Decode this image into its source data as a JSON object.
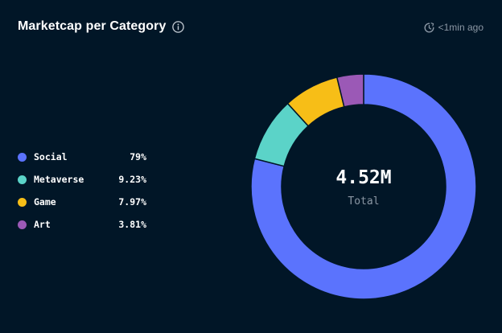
{
  "header": {
    "title": "Marketcap per Category",
    "info_icon": "info-icon",
    "updated_icon": "clock-icon",
    "updated_text": "<1min ago"
  },
  "center": {
    "value": "4.52M",
    "label": "Total"
  },
  "chart_data": {
    "type": "pie",
    "variant": "donut",
    "title": "Marketcap per Category",
    "total_label": "4.52M",
    "legend_position": "left",
    "categories": [
      "Social",
      "Metaverse",
      "Game",
      "Art"
    ],
    "values": [
      79,
      9.23,
      7.97,
      3.81
    ],
    "value_labels": [
      "79%",
      "9.23%",
      "7.97%",
      "3.81%"
    ],
    "colors": [
      "#5b73fd",
      "#5bd3c8",
      "#f7be17",
      "#9b59b6"
    ]
  },
  "colors": {
    "background": "#011627",
    "stroke": "#011627"
  }
}
